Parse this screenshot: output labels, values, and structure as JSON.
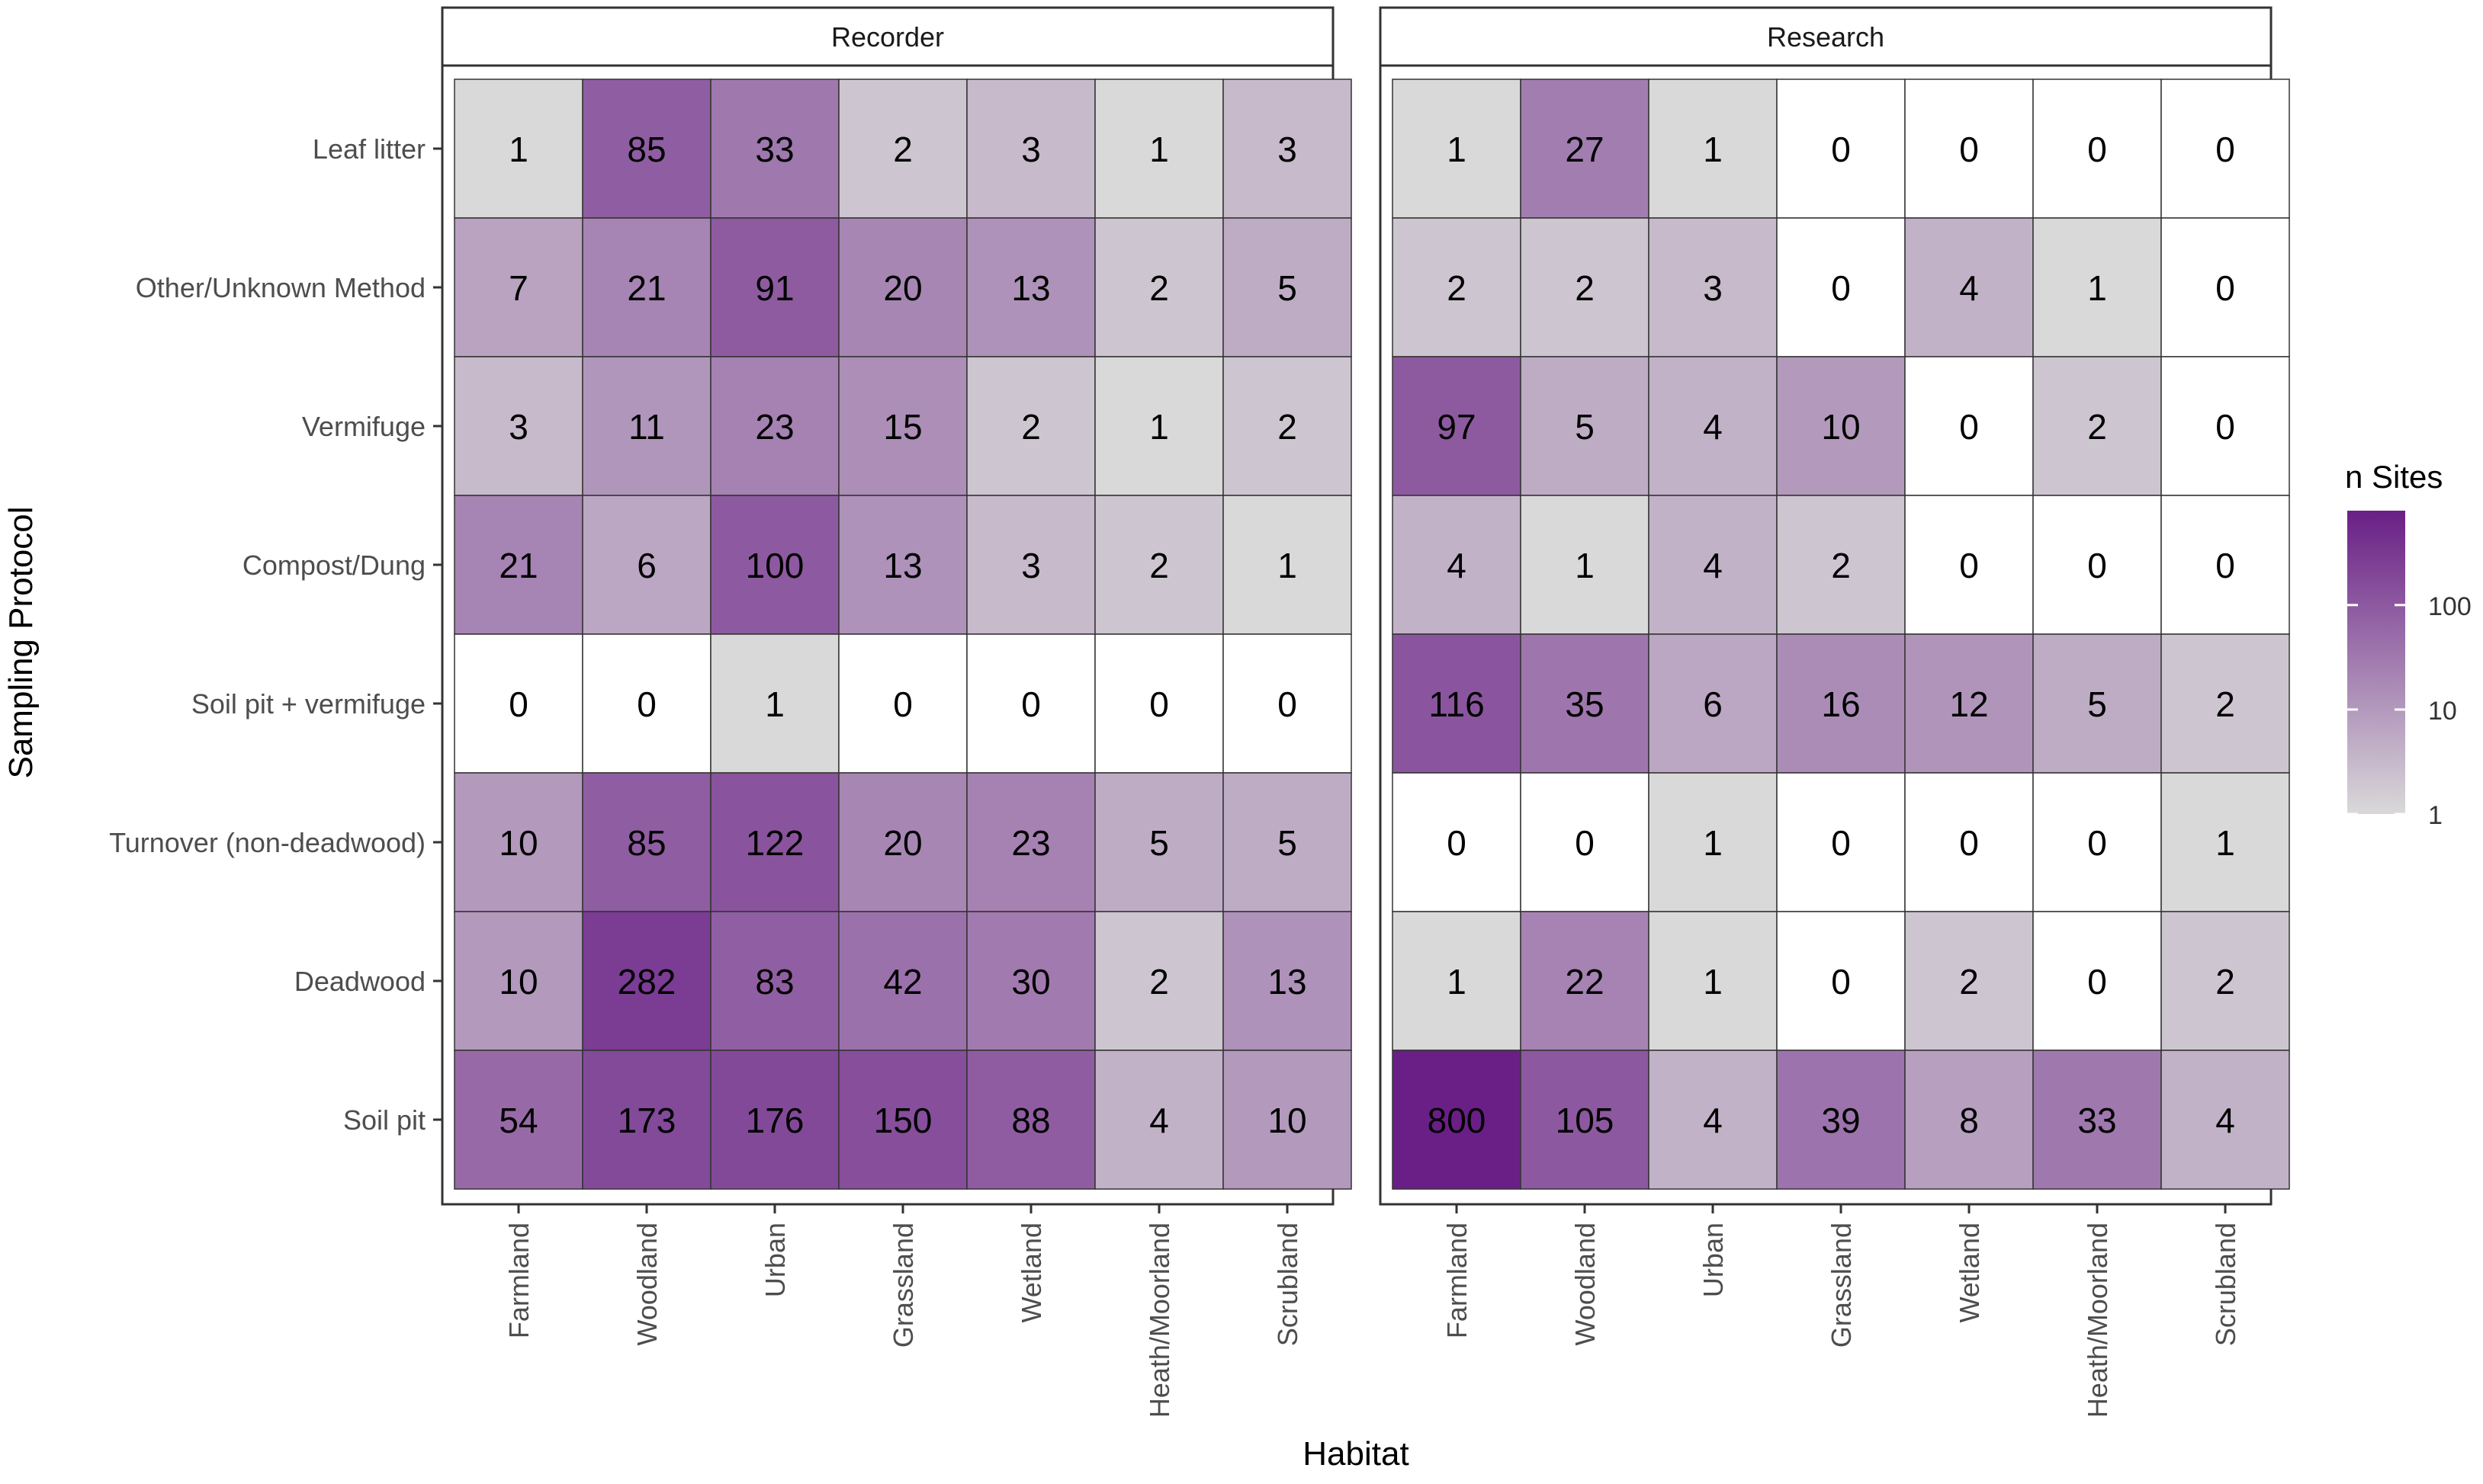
{
  "chart_data": {
    "type": "heatmap",
    "xlabel": "Habitat",
    "ylabel": "Sampling Protocol",
    "categories_x": [
      "Farmland",
      "Woodland",
      "Urban",
      "Grassland",
      "Wetland",
      "Heath/Moorland",
      "Scrubland"
    ],
    "categories_y": [
      "Leaf litter",
      "Other/Unknown Method",
      "Vermifuge",
      "Compost/Dung",
      "Soil pit + vermifuge",
      "Turnover (non-deadwood)",
      "Deadwood",
      "Soil pit"
    ],
    "panels": [
      {
        "name": "Recorder",
        "values": [
          [
            1,
            85,
            33,
            2,
            3,
            1,
            3
          ],
          [
            7,
            21,
            91,
            20,
            13,
            2,
            5
          ],
          [
            3,
            11,
            23,
            15,
            2,
            1,
            2
          ],
          [
            21,
            6,
            100,
            13,
            3,
            2,
            1
          ],
          [
            0,
            0,
            1,
            0,
            0,
            0,
            0
          ],
          [
            10,
            85,
            122,
            20,
            23,
            5,
            5
          ],
          [
            10,
            282,
            83,
            42,
            30,
            2,
            13
          ],
          [
            54,
            173,
            176,
            150,
            88,
            4,
            10
          ]
        ]
      },
      {
        "name": "Research",
        "values": [
          [
            1,
            27,
            1,
            0,
            0,
            0,
            0
          ],
          [
            2,
            2,
            3,
            0,
            4,
            1,
            0
          ],
          [
            97,
            5,
            4,
            10,
            0,
            2,
            0
          ],
          [
            4,
            1,
            4,
            2,
            0,
            0,
            0
          ],
          [
            116,
            35,
            6,
            16,
            12,
            5,
            2
          ],
          [
            0,
            0,
            1,
            0,
            0,
            0,
            1
          ],
          [
            1,
            22,
            1,
            0,
            2,
            0,
            2
          ],
          [
            800,
            105,
            4,
            39,
            8,
            33,
            4
          ]
        ]
      }
    ],
    "legend": {
      "title": "n Sites",
      "scale": "log",
      "ticks": [
        1,
        10,
        100
      ],
      "tick_labels": [
        "1",
        "10",
        "100"
      ],
      "range": [
        1,
        800
      ],
      "low_color": "#d9d9d9",
      "high_color": "#6a1f86",
      "zero_color": "#ffffff",
      "placement": "right"
    },
    "colors": {
      "strip_fill": "#ffffff",
      "panel_border": "#333333",
      "cell_border": "#333333"
    }
  }
}
